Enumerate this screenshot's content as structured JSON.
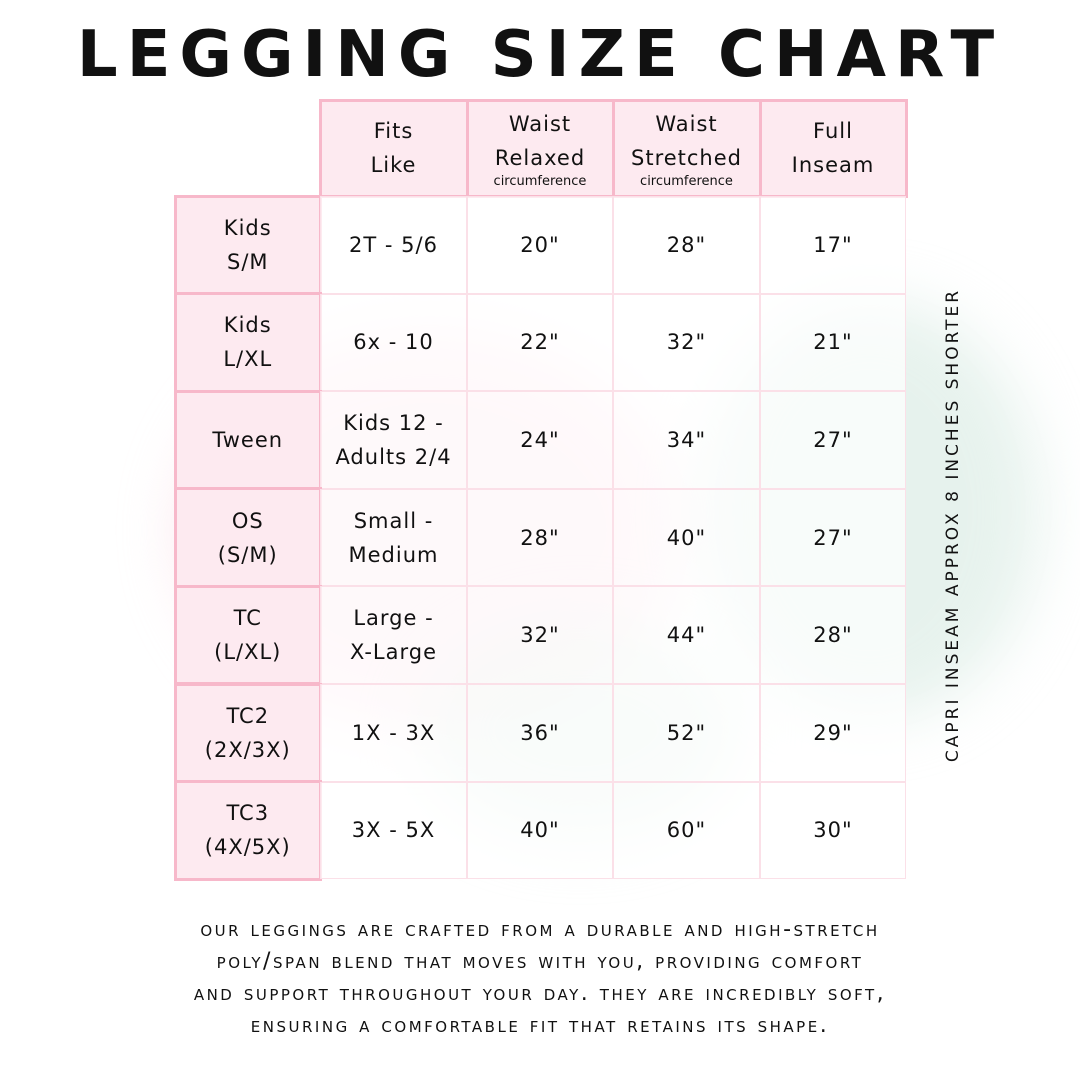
{
  "title": "LEGGING SIZE CHART",
  "side_note": "CAPRI INSEAM APPROX 8 INCHES SHORTER",
  "columns": [
    {
      "lines": [
        "Fits",
        "Like"
      ],
      "sub": ""
    },
    {
      "lines": [
        "Waist",
        "Relaxed"
      ],
      "sub": "circumference"
    },
    {
      "lines": [
        "Waist",
        "Stretched"
      ],
      "sub": "circumference"
    },
    {
      "lines": [
        "Full",
        "Inseam"
      ],
      "sub": ""
    }
  ],
  "rows": [
    {
      "size": [
        "Kids",
        "S/M"
      ],
      "fits": [
        "2T - 5/6"
      ],
      "relaxed": "20\"",
      "stretched": "28\"",
      "inseam": "17\""
    },
    {
      "size": [
        "Kids",
        "L/XL"
      ],
      "fits": [
        "6x - 10"
      ],
      "relaxed": "22\"",
      "stretched": "32\"",
      "inseam": "21\""
    },
    {
      "size": [
        "Tween"
      ],
      "fits": [
        "Kids 12 -",
        "Adults 2/4"
      ],
      "relaxed": "24\"",
      "stretched": "34\"",
      "inseam": "27\""
    },
    {
      "size": [
        "OS",
        "(S/M)"
      ],
      "fits": [
        "Small -",
        "Medium"
      ],
      "relaxed": "28\"",
      "stretched": "40\"",
      "inseam": "27\""
    },
    {
      "size": [
        "TC",
        "(L/XL)"
      ],
      "fits": [
        "Large -",
        "X-Large"
      ],
      "relaxed": "32\"",
      "stretched": "44\"",
      "inseam": "28\""
    },
    {
      "size": [
        "TC2",
        "(2X/3X)"
      ],
      "fits": [
        "1X - 3X"
      ],
      "relaxed": "36\"",
      "stretched": "52\"",
      "inseam": "29\""
    },
    {
      "size": [
        "TC3",
        "(4X/5X)"
      ],
      "fits": [
        "3X - 5X"
      ],
      "relaxed": "40\"",
      "stretched": "60\"",
      "inseam": "30\""
    }
  ],
  "description": [
    "OUR LEGGINGS ARE CRAFTED FROM A DURABLE AND HIGH-STRETCH",
    "POLY/SPAN BLEND THAT MOVES WITH YOU, PROVIDING COMFORT",
    "AND SUPPORT THROUGHOUT YOUR DAY. THEY ARE INCREDIBLY SOFT,",
    "ENSURING A COMFORTABLE FIT THAT RETAINS ITS SHAPE."
  ],
  "colors": {
    "border": "#f7b8ca",
    "header_bg": "#fdeaf0"
  }
}
